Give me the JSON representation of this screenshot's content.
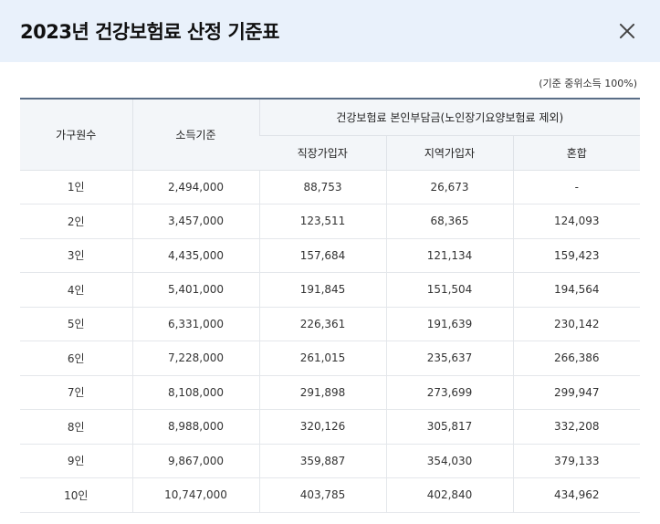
{
  "header": {
    "title": "2023년 건강보험료 산정 기준표"
  },
  "note": "(기준 중위소득 100%)",
  "table": {
    "headers": {
      "household": "가구원수",
      "income": "소득기준",
      "premium_group": "건강보험료 본인부담금(노인장기요양보험료 제외)",
      "employee": "직장가입자",
      "regional": "지역가입자",
      "mixed": "혼합"
    },
    "rows": [
      [
        "1인",
        "2,494,000",
        "88,753",
        "26,673",
        "-"
      ],
      [
        "2인",
        "3,457,000",
        "123,511",
        "68,365",
        "124,093"
      ],
      [
        "3인",
        "4,435,000",
        "157,684",
        "121,134",
        "159,423"
      ],
      [
        "4인",
        "5,401,000",
        "191,845",
        "151,504",
        "194,564"
      ],
      [
        "5인",
        "6,331,000",
        "226,361",
        "191,639",
        "230,142"
      ],
      [
        "6인",
        "7,228,000",
        "261,015",
        "235,637",
        "266,386"
      ],
      [
        "7인",
        "8,108,000",
        "291,898",
        "273,699",
        "299,947"
      ],
      [
        "8인",
        "8,988,000",
        "320,126",
        "305,817",
        "332,208"
      ],
      [
        "9인",
        "9,867,000",
        "359,887",
        "354,030",
        "379,133"
      ],
      [
        "10인",
        "10,747,000",
        "403,785",
        "402,840",
        "434,962"
      ]
    ]
  },
  "icons": {
    "close": "close-icon"
  }
}
